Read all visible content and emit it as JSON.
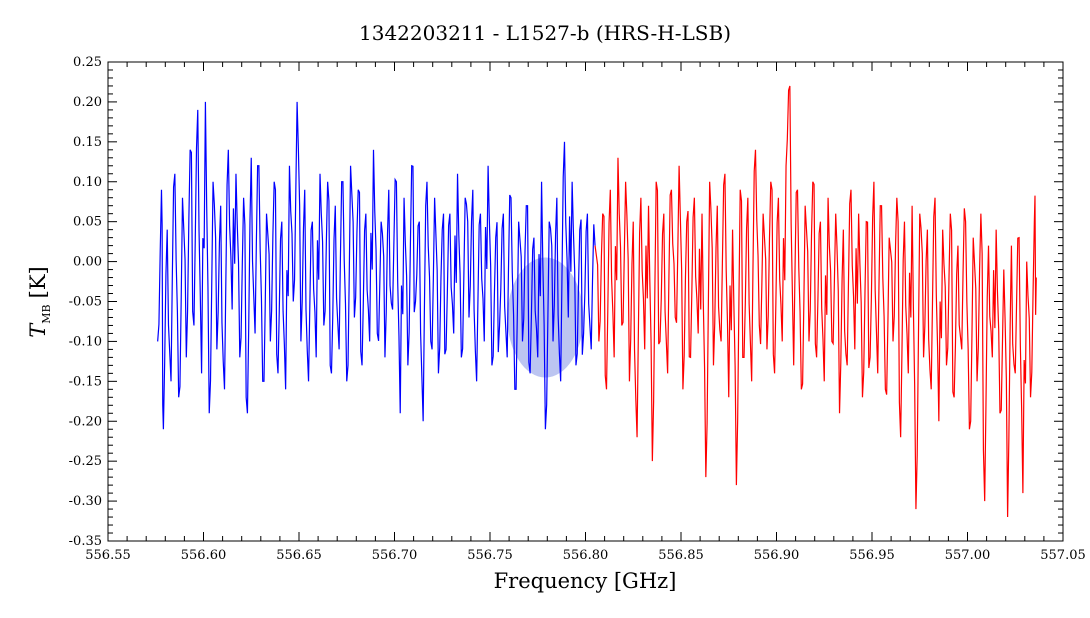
{
  "chart_data": {
    "type": "line",
    "title": "1342203211 - L1527-b (HRS-H-LSB)",
    "xlabel": "Frequency [GHz]",
    "ylabel": {
      "main": "T",
      "sub": "MB",
      "unit": "[K]"
    },
    "xlim": [
      556.55,
      557.05
    ],
    "ylim": [
      -0.35,
      0.25
    ],
    "xticks": [
      "556.55",
      "556.60",
      "556.65",
      "556.70",
      "556.75",
      "556.80",
      "556.85",
      "556.90",
      "556.95",
      "557.00",
      "557.05"
    ],
    "yticks": [
      "-0.35",
      "-0.30",
      "-0.25",
      "-0.20",
      "-0.15",
      "-0.10",
      "-0.05",
      "0.00",
      "0.05",
      "0.10",
      "0.15",
      "0.20",
      "0.25"
    ],
    "grid": false,
    "series": [
      {
        "color": "#0000ff",
        "x_range": [
          556.576,
          556.805
        ],
        "points": [
          [
            556.576,
            -0.1
          ],
          [
            556.578,
            0.09
          ],
          [
            556.579,
            -0.21
          ],
          [
            556.581,
            0.04
          ],
          [
            556.583,
            -0.15
          ],
          [
            556.585,
            0.11
          ],
          [
            556.587,
            -0.17
          ],
          [
            556.589,
            0.08
          ],
          [
            556.591,
            -0.12
          ],
          [
            556.593,
            0.14
          ],
          [
            556.595,
            -0.08
          ],
          [
            556.597,
            0.19
          ],
          [
            556.599,
            -0.14
          ],
          [
            556.601,
            0.2
          ],
          [
            556.603,
            -0.19
          ],
          [
            556.605,
            0.1
          ],
          [
            556.607,
            -0.11
          ],
          [
            556.609,
            0.07
          ],
          [
            556.611,
            -0.16
          ],
          [
            556.613,
            0.14
          ],
          [
            556.615,
            -0.06
          ],
          [
            556.617,
            0.11
          ],
          [
            556.619,
            -0.12
          ],
          [
            556.621,
            0.08
          ],
          [
            556.623,
            -0.19
          ],
          [
            556.625,
            0.13
          ],
          [
            556.627,
            -0.09
          ],
          [
            556.629,
            0.12
          ],
          [
            556.631,
            -0.15
          ],
          [
            556.633,
            0.06
          ],
          [
            556.635,
            -0.1
          ],
          [
            556.637,
            0.1
          ],
          [
            556.639,
            -0.14
          ],
          [
            556.641,
            0.05
          ],
          [
            556.643,
            -0.16
          ],
          [
            556.645,
            0.12
          ],
          [
            556.647,
            -0.05
          ],
          [
            556.649,
            0.2
          ],
          [
            556.651,
            -0.1
          ],
          [
            556.653,
            0.09
          ],
          [
            556.655,
            -0.15
          ],
          [
            556.657,
            0.05
          ],
          [
            556.659,
            -0.12
          ],
          [
            556.661,
            0.11
          ],
          [
            556.663,
            -0.08
          ],
          [
            556.665,
            0.1
          ],
          [
            556.667,
            -0.14
          ],
          [
            556.669,
            0.07
          ],
          [
            556.671,
            -0.11
          ],
          [
            556.673,
            0.1
          ],
          [
            556.675,
            -0.15
          ],
          [
            556.677,
            0.12
          ],
          [
            556.679,
            -0.07
          ],
          [
            556.681,
            0.09
          ],
          [
            556.683,
            -0.13
          ],
          [
            556.685,
            0.06
          ],
          [
            556.687,
            -0.1
          ],
          [
            556.689,
            0.14
          ],
          [
            556.691,
            -0.09
          ],
          [
            556.693,
            0.05
          ],
          [
            556.695,
            -0.12
          ],
          [
            556.697,
            0.09
          ],
          [
            556.699,
            -0.06
          ],
          [
            556.701,
            0.1
          ],
          [
            556.703,
            -0.19
          ],
          [
            556.705,
            0.08
          ],
          [
            556.707,
            -0.13
          ],
          [
            556.709,
            0.12
          ],
          [
            556.711,
            -0.05
          ],
          [
            556.713,
            0.05
          ],
          [
            556.715,
            -0.2
          ],
          [
            556.717,
            0.1
          ],
          [
            556.719,
            -0.1
          ],
          [
            556.721,
            0.08
          ],
          [
            556.723,
            -0.14
          ],
          [
            556.725,
            0.04
          ],
          [
            556.727,
            -0.11
          ],
          [
            556.729,
            0.06
          ],
          [
            556.731,
            -0.09
          ],
          [
            556.733,
            0.11
          ],
          [
            556.735,
            -0.12
          ],
          [
            556.737,
            0.08
          ],
          [
            556.739,
            -0.07
          ],
          [
            556.741,
            0.09
          ],
          [
            556.743,
            -0.15
          ],
          [
            556.745,
            0.06
          ],
          [
            556.747,
            -0.1
          ],
          [
            556.749,
            0.12
          ],
          [
            556.751,
            -0.13
          ],
          [
            556.753,
            0.03
          ],
          [
            556.755,
            -0.08
          ],
          [
            556.757,
            0.06
          ],
          [
            556.759,
            -0.12
          ],
          [
            556.761,
            0.08
          ],
          [
            556.763,
            -0.16
          ],
          [
            556.765,
            0.05
          ],
          [
            556.767,
            -0.1
          ],
          [
            556.769,
            0.07
          ],
          [
            556.771,
            -0.14
          ],
          [
            556.773,
            0.03
          ],
          [
            556.775,
            -0.12
          ],
          [
            556.777,
            0.1
          ],
          [
            556.779,
            -0.21
          ],
          [
            556.781,
            0.05
          ],
          [
            556.783,
            -0.1
          ],
          [
            556.785,
            0.08
          ],
          [
            556.787,
            -0.15
          ],
          [
            556.789,
            0.15
          ],
          [
            556.791,
            -0.07
          ],
          [
            556.793,
            0.1
          ],
          [
            556.795,
            -0.13
          ],
          [
            556.797,
            0.04
          ],
          [
            556.799,
            -0.09
          ],
          [
            556.801,
            0.06
          ],
          [
            556.803,
            -0.11
          ],
          [
            556.805,
            0.02
          ]
        ]
      },
      {
        "color": "#ff0000",
        "x_range": [
          556.805,
          557.036
        ],
        "points": [
          [
            556.805,
            0.02
          ],
          [
            556.807,
            -0.1
          ],
          [
            556.809,
            0.06
          ],
          [
            556.811,
            -0.16
          ],
          [
            556.813,
            0.09
          ],
          [
            556.815,
            -0.12
          ],
          [
            556.817,
            0.13
          ],
          [
            556.819,
            -0.08
          ],
          [
            556.821,
            0.1
          ],
          [
            556.823,
            -0.15
          ],
          [
            556.825,
            0.05
          ],
          [
            556.827,
            -0.22
          ],
          [
            556.829,
            0.08
          ],
          [
            556.831,
            -0.11
          ],
          [
            556.833,
            0.07
          ],
          [
            556.835,
            -0.25
          ],
          [
            556.837,
            0.1
          ],
          [
            556.839,
            -0.1
          ],
          [
            556.841,
            0.06
          ],
          [
            556.843,
            -0.14
          ],
          [
            556.845,
            0.09
          ],
          [
            556.847,
            -0.07
          ],
          [
            556.849,
            0.12
          ],
          [
            556.851,
            -0.16
          ],
          [
            556.853,
            0.05
          ],
          [
            556.855,
            -0.12
          ],
          [
            556.857,
            0.08
          ],
          [
            556.859,
            -0.09
          ],
          [
            556.861,
            0.06
          ],
          [
            556.863,
            -0.27
          ],
          [
            556.865,
            0.1
          ],
          [
            556.867,
            -0.13
          ],
          [
            556.869,
            0.07
          ],
          [
            556.871,
            -0.1
          ],
          [
            556.873,
            0.11
          ],
          [
            556.875,
            -0.17
          ],
          [
            556.877,
            0.04
          ],
          [
            556.879,
            -0.28
          ],
          [
            556.881,
            0.09
          ],
          [
            556.883,
            -0.12
          ],
          [
            556.885,
            0.08
          ],
          [
            556.887,
            -0.15
          ],
          [
            556.889,
            0.14
          ],
          [
            556.891,
            -0.08
          ],
          [
            556.893,
            0.06
          ],
          [
            556.895,
            -0.11
          ],
          [
            556.897,
            0.1
          ],
          [
            556.899,
            -0.14
          ],
          [
            556.901,
            0.08
          ],
          [
            556.903,
            -0.1
          ],
          [
            556.905,
            0.12
          ],
          [
            556.907,
            0.22
          ],
          [
            556.909,
            -0.13
          ],
          [
            556.911,
            0.09
          ],
          [
            556.913,
            -0.16
          ],
          [
            556.915,
            0.07
          ],
          [
            556.917,
            -0.1
          ],
          [
            556.919,
            0.1
          ],
          [
            556.921,
            -0.12
          ],
          [
            556.923,
            0.05
          ],
          [
            556.925,
            -0.15
          ],
          [
            556.927,
            0.08
          ],
          [
            556.929,
            -0.1
          ],
          [
            556.931,
            0.06
          ],
          [
            556.933,
            -0.19
          ],
          [
            556.935,
            0.04
          ],
          [
            556.937,
            -0.13
          ],
          [
            556.939,
            0.09
          ],
          [
            556.941,
            -0.11
          ],
          [
            556.943,
            0.06
          ],
          [
            556.945,
            -0.17
          ],
          [
            556.947,
            0.05
          ],
          [
            556.949,
            -0.12
          ],
          [
            556.951,
            0.1
          ],
          [
            556.953,
            -0.14
          ],
          [
            556.955,
            0.07
          ],
          [
            556.957,
            -0.16
          ],
          [
            556.959,
            0.03
          ],
          [
            556.961,
            -0.1
          ],
          [
            556.963,
            0.08
          ],
          [
            556.965,
            -0.22
          ],
          [
            556.967,
            0.05
          ],
          [
            556.969,
            -0.14
          ],
          [
            556.971,
            0.07
          ],
          [
            556.973,
            -0.31
          ],
          [
            556.975,
            0.06
          ],
          [
            556.977,
            -0.12
          ],
          [
            556.979,
            0.04
          ],
          [
            556.981,
            -0.16
          ],
          [
            556.983,
            0.08
          ],
          [
            556.985,
            -0.2
          ],
          [
            556.987,
            0.04
          ],
          [
            556.989,
            -0.13
          ],
          [
            556.991,
            0.06
          ],
          [
            556.993,
            -0.17
          ],
          [
            556.995,
            0.02
          ],
          [
            556.997,
            -0.11
          ],
          [
            556.999,
            0.05
          ],
          [
            557.001,
            -0.21
          ],
          [
            557.003,
            0.03
          ],
          [
            557.005,
            -0.15
          ],
          [
            557.007,
            0.06
          ],
          [
            557.009,
            -0.3
          ],
          [
            557.011,
            0.02
          ],
          [
            557.013,
            -0.12
          ],
          [
            557.015,
            0.04
          ],
          [
            557.017,
            -0.19
          ],
          [
            557.019,
            -0.01
          ],
          [
            557.021,
            -0.32
          ],
          [
            557.023,
            0.02
          ],
          [
            557.025,
            -0.14
          ],
          [
            557.027,
            0.03
          ],
          [
            557.029,
            -0.29
          ],
          [
            557.031,
            0.0
          ],
          [
            557.033,
            -0.17
          ],
          [
            557.035,
            0.05
          ],
          [
            557.036,
            -0.02
          ]
        ]
      }
    ],
    "highlight": {
      "x": 556.779,
      "y": -0.07,
      "color": "#6a7fe0"
    }
  }
}
